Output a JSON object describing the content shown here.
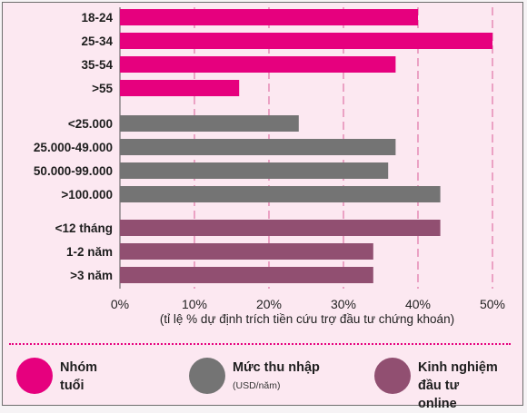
{
  "chart_data": {
    "type": "bar",
    "orientation": "horizontal",
    "xlabel": "(tỉ lệ % dự định trích tiền cứu trợ đầu tư chứng khoán)",
    "xlim": [
      0,
      50
    ],
    "xticks": [
      0,
      10,
      20,
      30,
      40,
      50
    ],
    "xtick_labels": [
      "0%",
      "10%",
      "20%",
      "30%",
      "40%",
      "50%"
    ],
    "grid": "vertical dashed",
    "groups": [
      {
        "name": "Nhóm tuổi",
        "color": "#e6007e",
        "categories": [
          "18-24",
          "25-34",
          "35-54",
          ">55"
        ],
        "values": [
          40,
          50,
          37,
          16
        ]
      },
      {
        "name": "Mức thu nhập",
        "color": "#747474",
        "categories": [
          "<25.000",
          "25.000-49.000",
          "50.000-99.000",
          ">100.000"
        ],
        "values": [
          24,
          37,
          36,
          43
        ]
      },
      {
        "name": "Kinh nghiệm đầu tư online",
        "color": "#914f71",
        "categories": [
          "<12 tháng",
          "1-2 năm",
          ">3 năm"
        ],
        "values": [
          43,
          34,
          34
        ]
      }
    ]
  },
  "legend": [
    {
      "label": "Nhóm tuổi",
      "sub": "",
      "color": "#e6007e"
    },
    {
      "label": "Mức thu nhập",
      "sub": "(USD/năm)",
      "color": "#747474"
    },
    {
      "label": "Kinh nghiệm đầu tư online",
      "sub": "",
      "color": "#914f71"
    }
  ]
}
